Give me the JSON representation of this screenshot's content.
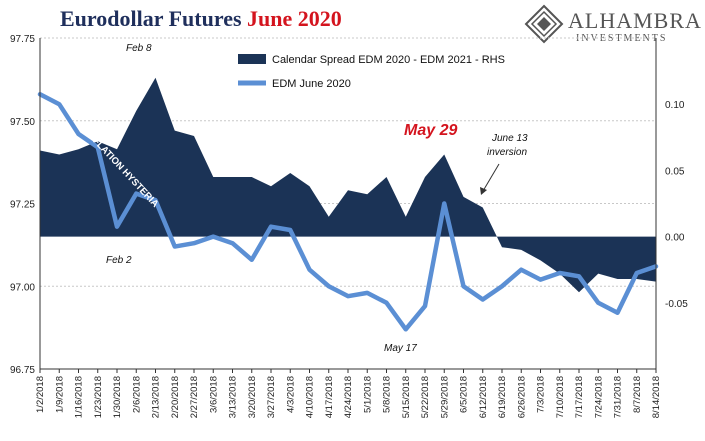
{
  "header": {
    "title_part1": "Eurodollar Futures ",
    "title_part2": "June 2020",
    "title_part2_color": "#d4141e"
  },
  "logo": {
    "name": "ALHAMBRA",
    "subtitle": "INVESTMENTS"
  },
  "chart_data": {
    "type": "line",
    "x": [
      "1/2/2018",
      "1/9/2018",
      "1/16/2018",
      "1/23/2018",
      "1/30/2018",
      "2/6/2018",
      "2/13/2018",
      "2/20/2018",
      "2/27/2018",
      "3/6/2018",
      "3/13/2018",
      "3/20/2018",
      "3/27/2018",
      "4/3/2018",
      "4/10/2018",
      "4/17/2018",
      "4/24/2018",
      "5/1/2018",
      "5/8/2018",
      "5/15/2018",
      "5/22/2018",
      "5/29/2018",
      "6/5/2018",
      "6/12/2018",
      "6/19/2018",
      "6/26/2018",
      "7/3/2018",
      "7/10/2018",
      "7/17/2018",
      "7/24/2018",
      "7/31/2018",
      "8/7/2018",
      "8/14/2018"
    ],
    "ylim_left": [
      96.75,
      97.75
    ],
    "ylim_right": [
      -0.1,
      0.15
    ],
    "left_ticks": [
      "97.75",
      "97.50",
      "97.25",
      "97.00",
      "96.75"
    ],
    "right_ticks": [
      "0.10",
      "0.05",
      "0.00",
      "-0.05"
    ],
    "grid": true,
    "legend_position": "top-center",
    "series": [
      {
        "name": "Calendar Spread EDM 2020 - EDM 2021 - RHS",
        "style": "area",
        "axis": "right",
        "color": "#1b3356",
        "values": [
          0.065,
          0.062,
          0.066,
          0.072,
          0.066,
          0.095,
          0.12,
          0.08,
          0.076,
          0.045,
          0.045,
          0.045,
          0.038,
          0.048,
          0.038,
          0.015,
          0.035,
          0.032,
          0.045,
          0.015,
          0.045,
          0.062,
          0.03,
          0.022,
          -0.008,
          -0.01,
          -0.018,
          -0.028,
          -0.042,
          -0.028,
          -0.032,
          -0.032,
          -0.034
        ]
      },
      {
        "name": "EDM June 2020",
        "style": "line",
        "axis": "left",
        "color": "#5b8fd4",
        "values": [
          97.58,
          97.55,
          97.46,
          97.42,
          97.18,
          97.28,
          97.26,
          97.12,
          97.13,
          97.15,
          97.13,
          97.08,
          97.18,
          97.17,
          97.05,
          97.0,
          96.97,
          96.98,
          96.95,
          96.87,
          96.94,
          97.25,
          97.0,
          96.96,
          97.0,
          97.05,
          97.02,
          97.04,
          97.03,
          96.95,
          96.92,
          97.04,
          97.06
        ]
      }
    ],
    "annotations": {
      "feb8": "Feb 8",
      "feb2": "Feb 2",
      "may29": "May 29",
      "june13_line1": "June 13",
      "june13_line2": "inversion",
      "may17": "May 17",
      "hysteria": "INFLATION HYSTERIA"
    }
  }
}
